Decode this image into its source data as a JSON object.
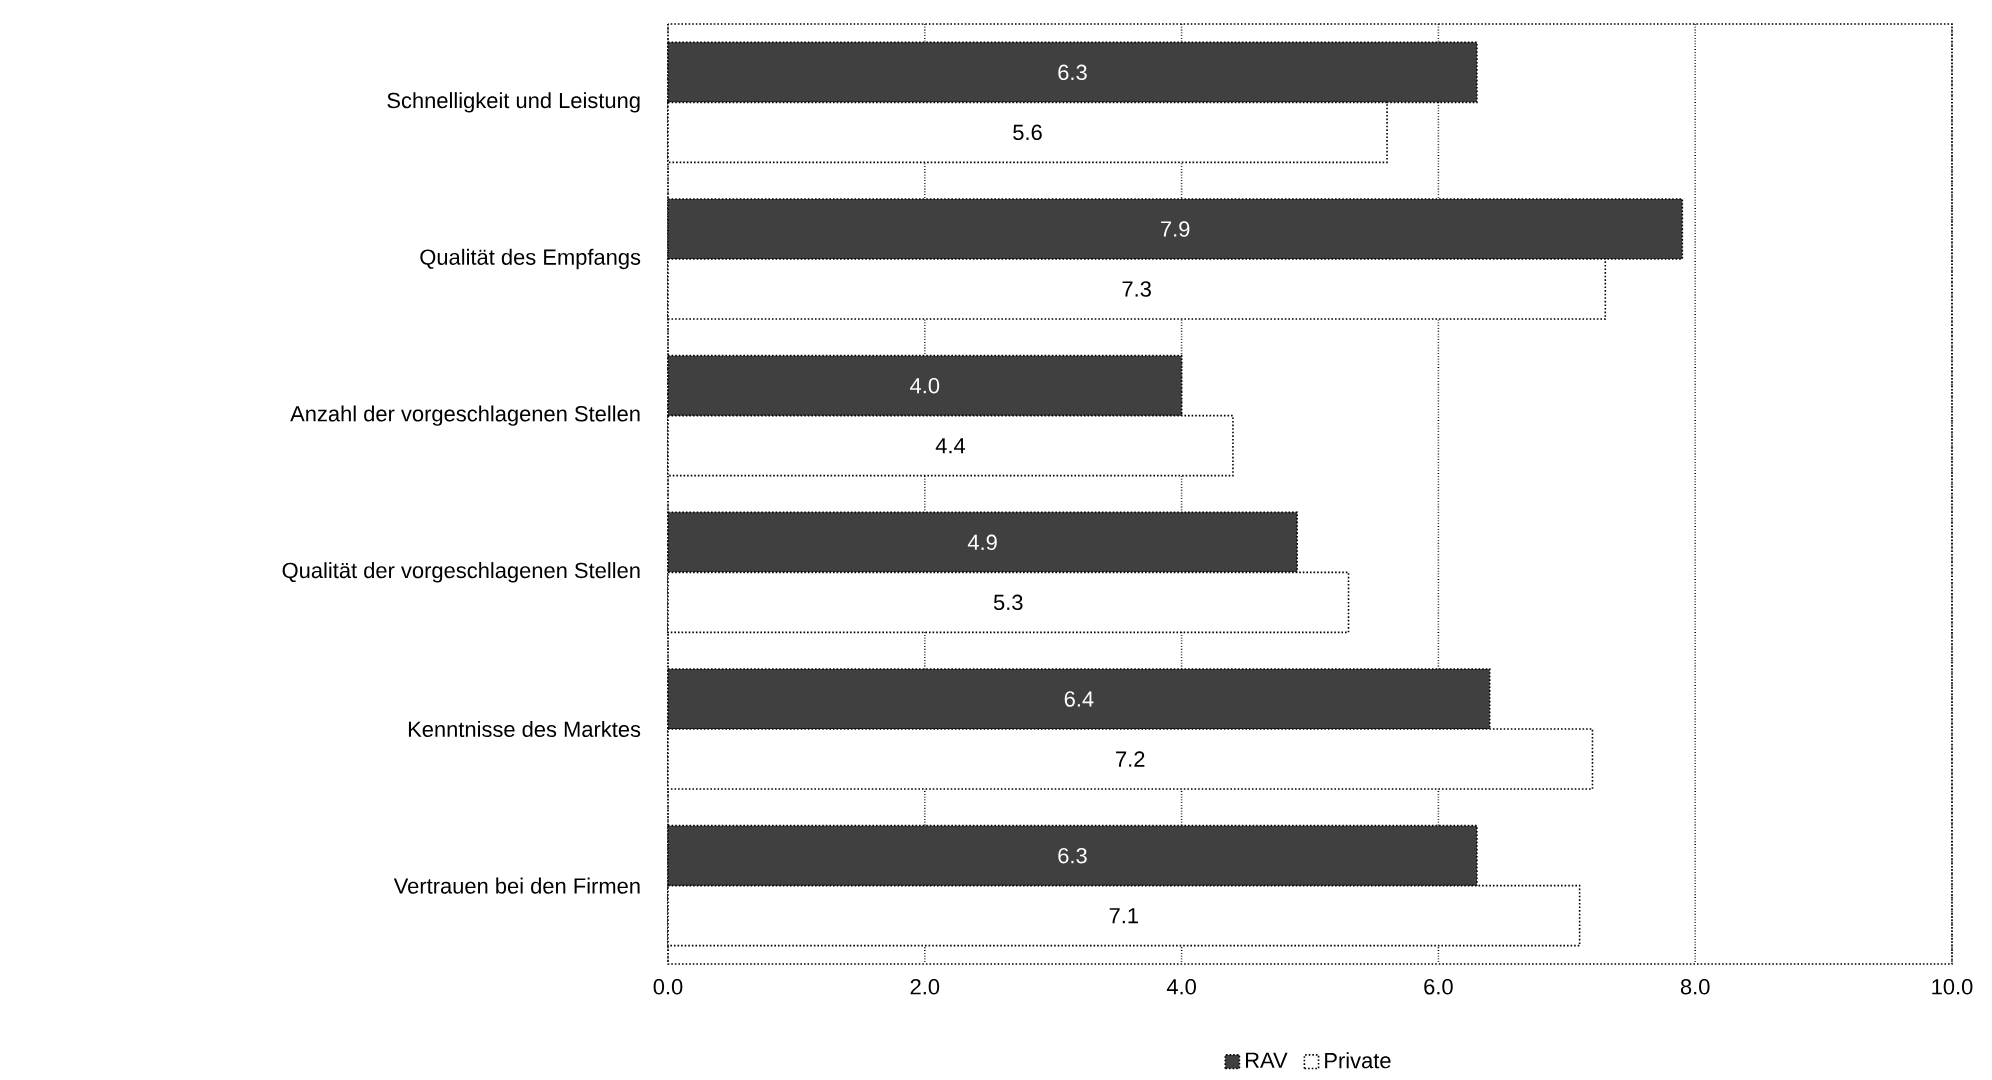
{
  "chart_data": {
    "type": "bar",
    "orientation": "horizontal",
    "categories": [
      "Schnelligkeit und Leistung",
      "Qualität des Empfangs",
      "Anzahl der vorgeschlagenen Stellen",
      "Qualität der vorgeschlagenen Stellen",
      "Kenntnisse des Marktes",
      "Vertrauen bei den Firmen"
    ],
    "series": [
      {
        "name": "RAV",
        "color": "#404040",
        "values": [
          6.3,
          7.9,
          4.0,
          4.9,
          6.4,
          6.3
        ],
        "value_labels": [
          "6.3",
          "7.9",
          "4.0",
          "4.9",
          "6.4",
          "6.3"
        ]
      },
      {
        "name": "Private",
        "color": "#ffffff",
        "values": [
          5.6,
          7.3,
          4.4,
          5.3,
          7.2,
          7.1
        ],
        "value_labels": [
          "5.6",
          "7.3",
          "4.4",
          "5.3",
          "7.2",
          "7.1"
        ]
      }
    ],
    "xlim": [
      0,
      10
    ],
    "xticks": [
      {
        "value": 0,
        "label": "0.0"
      },
      {
        "value": 2,
        "label": "2.0"
      },
      {
        "value": 4,
        "label": "4.0"
      },
      {
        "value": 6,
        "label": "6.0"
      },
      {
        "value": 8,
        "label": "8.0"
      },
      {
        "value": 10,
        "label": "10.0"
      }
    ],
    "grid": "x",
    "legend": "bottom"
  }
}
